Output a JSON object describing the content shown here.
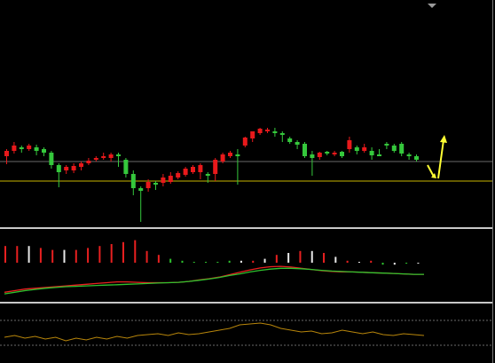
{
  "colors": {
    "background": "#000000",
    "up_candle": "#e8191b",
    "down_candle": "#35c83c",
    "wick": "#6f8a6f",
    "hline_gray": "#6a6a6a",
    "hline_yellow": "#c8b400",
    "separator": "#c8c8c8",
    "macd_red": "#e82020",
    "macd_green": "#2ec22e",
    "macd_white": "#e8e8e8",
    "osc_line": "#b8860b",
    "arrow": "#ffff33",
    "dotted": "#6a6a6a",
    "border_gray": "#7a7a7a"
  },
  "icons": [
    "scroll-marker-icon",
    "arrow-down-right-icon",
    "arrow-up-icon"
  ],
  "chart_data": [
    {
      "type": "candlestick",
      "panel": "price",
      "hlines": [
        182,
        204
      ],
      "candles": [
        [
          176,
          170,
          185,
          168
        ],
        [
          170,
          164,
          173,
          160
        ],
        [
          166,
          167,
          172,
          164
        ],
        [
          168,
          164,
          170,
          162
        ],
        [
          166,
          170,
          175,
          163
        ],
        [
          168,
          172,
          176,
          166
        ],
        [
          172,
          186,
          190,
          170
        ],
        [
          186,
          194,
          211,
          184
        ],
        [
          192,
          188,
          196,
          186
        ],
        [
          192,
          187,
          195,
          184
        ],
        [
          188,
          184,
          192,
          182
        ],
        [
          184,
          181,
          186,
          178
        ],
        [
          180,
          178,
          182,
          176
        ],
        [
          178,
          176,
          180,
          172
        ],
        [
          178,
          174,
          182,
          172
        ],
        [
          174,
          176,
          188,
          172
        ],
        [
          180,
          196,
          200,
          178
        ],
        [
          196,
          212,
          220,
          192
        ],
        [
          212,
          215,
          250,
          210
        ],
        [
          212,
          205,
          216,
          202
        ],
        [
          206,
          206,
          214,
          204
        ],
        [
          206,
          200,
          210,
          196
        ],
        [
          205,
          198,
          207,
          194
        ],
        [
          200,
          195,
          202,
          193
        ],
        [
          197,
          190,
          199,
          188
        ],
        [
          194,
          188,
          196,
          186
        ],
        [
          194,
          186,
          202,
          184
        ],
        [
          196,
          198,
          206,
          194
        ],
        [
          196,
          180,
          204,
          178
        ],
        [
          182,
          174,
          184,
          172
        ],
        [
          176,
          172,
          178,
          170
        ],
        [
          174,
          176,
          208,
          168
        ],
        [
          164,
          155,
          166,
          154
        ],
        [
          156,
          148,
          160,
          148
        ],
        [
          150,
          145,
          152,
          144
        ],
        [
          148,
          146,
          150,
          144
        ],
        [
          148,
          150,
          154,
          144
        ],
        [
          150,
          152,
          160,
          148
        ],
        [
          156,
          160,
          162,
          154
        ],
        [
          160,
          163,
          168,
          158
        ],
        [
          162,
          176,
          178,
          160
        ],
        [
          174,
          178,
          198,
          170
        ],
        [
          177,
          172,
          180,
          171
        ],
        [
          171,
          173,
          175,
          170
        ],
        [
          174,
          172,
          176,
          170
        ],
        [
          171,
          176,
          178,
          170
        ],
        [
          168,
          158,
          172,
          154
        ],
        [
          166,
          170,
          174,
          164
        ],
        [
          170,
          166,
          172,
          162
        ],
        [
          170,
          175,
          180,
          166
        ],
        [
          174,
          176,
          176,
          168
        ],
        [
          162,
          164,
          168,
          160
        ],
        [
          164,
          170,
          172,
          162
        ],
        [
          162,
          173,
          176,
          160
        ],
        [
          174,
          176,
          180,
          172
        ],
        [
          176,
          180,
          182,
          174
        ]
      ]
    },
    {
      "type": "histogram+line",
      "panel": "macd",
      "series": [
        {
          "color_key": "macd_red",
          "values": [
            -34,
            -30,
            -26,
            -24,
            -22,
            -20,
            -18,
            -16,
            -14,
            -12,
            -10,
            -8,
            -8,
            -9,
            -10,
            -10,
            -10,
            -9,
            -7,
            -3,
            0,
            4,
            10,
            16,
            22,
            27,
            30,
            31,
            29,
            26,
            23,
            20,
            18,
            17,
            17,
            16,
            15,
            14,
            13,
            12,
            11,
            11
          ]
        },
        {
          "color_key": "macd_green",
          "values": [
            -38,
            -34,
            -30,
            -27,
            -24,
            -22,
            -20,
            -19,
            -18,
            -17,
            -16,
            -15,
            -14,
            -13,
            -12,
            -11,
            -10,
            -9,
            -7,
            -4,
            -1,
            3,
            8,
            12,
            17,
            21,
            24,
            26,
            26,
            25,
            23,
            21,
            19,
            18,
            17,
            16,
            15,
            14,
            13,
            12,
            11,
            11
          ]
        }
      ]
    },
    {
      "type": "line",
      "panel": "oscillator",
      "series": [
        {
          "color_key": "osc_line",
          "values": [
            380,
            378,
            381,
            379,
            382,
            380,
            384,
            381,
            383,
            380,
            382,
            379,
            381,
            378,
            377,
            376,
            378,
            375,
            377,
            376,
            374,
            372,
            370,
            366,
            365,
            364,
            366,
            370,
            372,
            374,
            373,
            376,
            375,
            372,
            374,
            376,
            374,
            377,
            378,
            376,
            377,
            378
          ]
        }
      ]
    }
  ]
}
